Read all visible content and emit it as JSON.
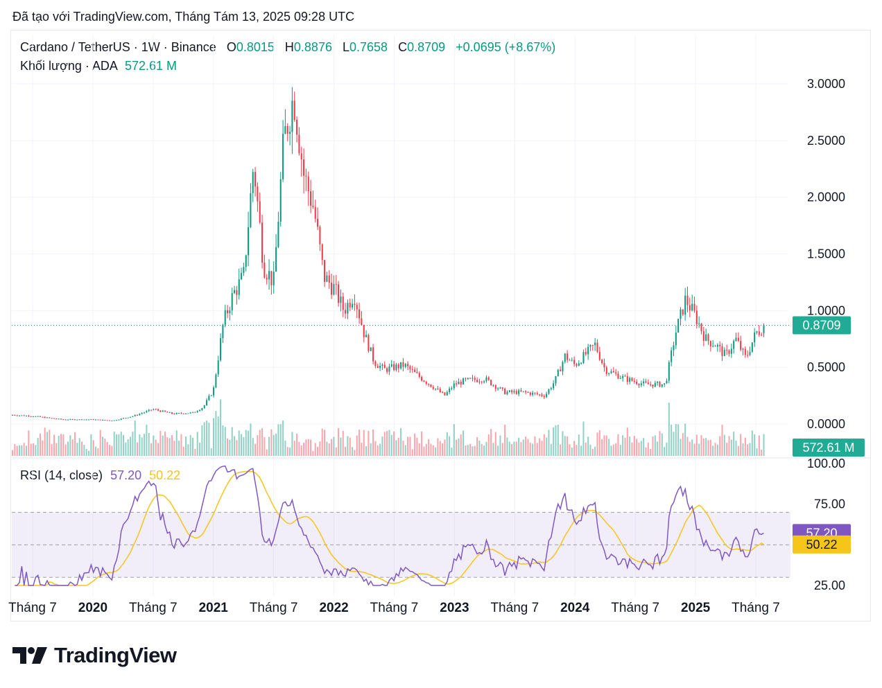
{
  "caption": "Đã tạo với TradingView.com, Tháng Tám 13, 2025 09:28 UTC",
  "legend": {
    "symbol": "Cardano / TetherUS · 1W · Binance",
    "o_label": "O",
    "o_value": "0.8015",
    "h_label": "H",
    "h_value": "0.8876",
    "l_label": "L",
    "l_value": "0.7658",
    "c_label": "C",
    "c_value": "0.8709",
    "change": "+0.0695 (+8.67%)",
    "volume_label": "Khối lượng · ADA",
    "volume_value": "572.61 M"
  },
  "rsi_legend": {
    "label": "RSI (14, close)",
    "rsi_value": "57.20",
    "ma_value": "50.22"
  },
  "badges": {
    "price": "0.8709",
    "volume": "572.61 M",
    "rsi": "57.20",
    "rsi_ma": "50.22"
  },
  "logo_text": "TradingView",
  "colors": {
    "up": "#089981",
    "down": "#f23645",
    "rsi": "#7e57c2",
    "rsi_ma": "#f5c518",
    "band": "#7e57c2"
  },
  "chart_data": [
    {
      "type": "candlestick",
      "symbol": "ADA/USDT",
      "interval": "1W",
      "price_ticks": [
        "0.0000",
        "0.5000",
        "1.0000",
        "1.5000",
        "2.0000",
        "2.5000",
        "3.0000"
      ],
      "ylim": [
        0,
        3.0
      ],
      "x_ticks": [
        {
          "label": "Tháng 7",
          "date": "2019-07",
          "bold": false
        },
        {
          "label": "2020",
          "date": "2020-01",
          "bold": true
        },
        {
          "label": "Tháng 7",
          "date": "2020-07",
          "bold": false
        },
        {
          "label": "2021",
          "date": "2021-01",
          "bold": true
        },
        {
          "label": "Tháng 7",
          "date": "2021-07",
          "bold": false
        },
        {
          "label": "2022",
          "date": "2022-01",
          "bold": true
        },
        {
          "label": "Tháng 7",
          "date": "2022-07",
          "bold": false
        },
        {
          "label": "2023",
          "date": "2023-01",
          "bold": true
        },
        {
          "label": "Tháng 7",
          "date": "2023-07",
          "bold": false
        },
        {
          "label": "2024",
          "date": "2024-01",
          "bold": true
        },
        {
          "label": "Tháng 7",
          "date": "2024-07",
          "bold": false
        },
        {
          "label": "2025",
          "date": "2025-01",
          "bold": true
        },
        {
          "label": "Tháng 7",
          "date": "2025-07",
          "bold": false
        }
      ],
      "close_path": [
        [
          "2019-05",
          0.08
        ],
        [
          "2019-07",
          0.07
        ],
        [
          "2019-10",
          0.04
        ],
        [
          "2020-01",
          0.04
        ],
        [
          "2020-03",
          0.03
        ],
        [
          "2020-05",
          0.07
        ],
        [
          "2020-07",
          0.13
        ],
        [
          "2020-09",
          0.09
        ],
        [
          "2020-11",
          0.1
        ],
        [
          "2020-12",
          0.15
        ],
        [
          "2021-01",
          0.3
        ],
        [
          "2021-02",
          0.9
        ],
        [
          "2021-03",
          1.15
        ],
        [
          "2021-04",
          1.3
        ],
        [
          "2021-05",
          2.3
        ],
        [
          "2021-06",
          1.4
        ],
        [
          "2021-07",
          1.25
        ],
        [
          "2021-08",
          2.5
        ],
        [
          "2021-09",
          2.9
        ],
        [
          "2021-10",
          2.2
        ],
        [
          "2021-11",
          1.9
        ],
        [
          "2021-12",
          1.3
        ],
        [
          "2022-01",
          1.2
        ],
        [
          "2022-02",
          1.0
        ],
        [
          "2022-03",
          1.15
        ],
        [
          "2022-04",
          0.8
        ],
        [
          "2022-05",
          0.55
        ],
        [
          "2022-06",
          0.48
        ],
        [
          "2022-08",
          0.52
        ],
        [
          "2022-09",
          0.45
        ],
        [
          "2022-11",
          0.32
        ],
        [
          "2022-12",
          0.25
        ],
        [
          "2023-01",
          0.35
        ],
        [
          "2023-02",
          0.38
        ],
        [
          "2023-04",
          0.4
        ],
        [
          "2023-06",
          0.28
        ],
        [
          "2023-08",
          0.28
        ],
        [
          "2023-10",
          0.25
        ],
        [
          "2023-11",
          0.38
        ],
        [
          "2023-12",
          0.6
        ],
        [
          "2024-01",
          0.52
        ],
        [
          "2024-03",
          0.7
        ],
        [
          "2024-04",
          0.48
        ],
        [
          "2024-06",
          0.4
        ],
        [
          "2024-08",
          0.35
        ],
        [
          "2024-10",
          0.35
        ],
        [
          "2024-11",
          0.8
        ],
        [
          "2024-12",
          1.1
        ],
        [
          "2025-01",
          0.95
        ],
        [
          "2025-02",
          0.75
        ],
        [
          "2025-03",
          0.7
        ],
        [
          "2025-04",
          0.6
        ],
        [
          "2025-05",
          0.75
        ],
        [
          "2025-06",
          0.58
        ],
        [
          "2025-07",
          0.8
        ],
        [
          "2025-08",
          0.87
        ]
      ],
      "last_close": 0.8709
    },
    {
      "type": "bar",
      "name": "Khối lượng",
      "last_value": "572.61 M"
    },
    {
      "type": "line",
      "name": "RSI (14, close)",
      "ticks": [
        "25.00",
        "75.00",
        "100.00"
      ],
      "ylim": [
        25,
        100
      ],
      "band": [
        30,
        70
      ],
      "series": [
        {
          "name": "RSI",
          "last_value": 57.2
        },
        {
          "name": "RSI MA",
          "last_value": 50.22
        }
      ]
    }
  ]
}
